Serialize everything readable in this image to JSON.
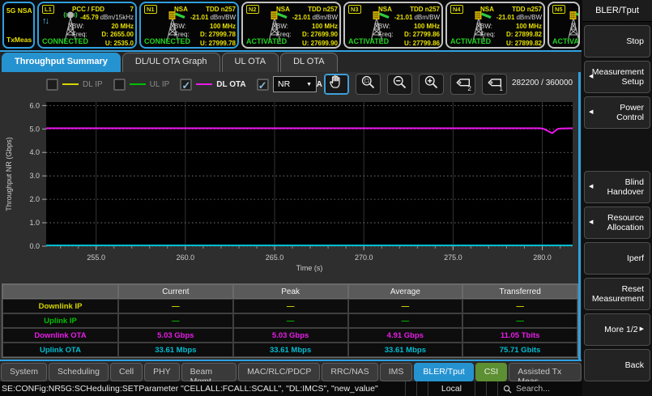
{
  "system_box": {
    "line1": "5G NSA",
    "line2": "TxMeas"
  },
  "cells": [
    {
      "badge": "L1",
      "kind": "lte",
      "selected": true,
      "partial": false,
      "line1_left": "PCC / FDD",
      "line1_right": "7",
      "power": "-45.79",
      "power_unit": "dBm/15kHz",
      "bw_label": "BW:",
      "bw": "20 MHz",
      "freq_label": "Freq:",
      "dl": "D: 2655.00",
      "ul": "U: 2535.0",
      "status": "CONNECTED"
    },
    {
      "badge": "N1",
      "kind": "nr",
      "selected": true,
      "partial": false,
      "line1_left": "NSA",
      "line1_right": "TDD n257",
      "power": "-21.01",
      "power_unit": "dBm/BW",
      "bw_label": "BW:",
      "bw": "100 MHz",
      "freq_label": "Freq:",
      "dl": "D: 27999.78",
      "ul": "U: 27999.78",
      "status": "CONNECTED"
    },
    {
      "badge": "N2",
      "kind": "nr",
      "selected": false,
      "partial": false,
      "line1_left": "NSA",
      "line1_right": "TDD n257",
      "power": "-21.01",
      "power_unit": "dBm/BW",
      "bw_label": "BW:",
      "bw": "100 MHz",
      "freq_label": "Freq:",
      "dl": "D: 27699.90",
      "ul": "U: 27699.90",
      "status": "ACTIVATED"
    },
    {
      "badge": "N3",
      "kind": "nr",
      "selected": false,
      "partial": false,
      "line1_left": "NSA",
      "line1_right": "TDD n257",
      "power": "-21.01",
      "power_unit": "dBm/BW",
      "bw_label": "BW:",
      "bw": "100 MHz",
      "freq_label": "Freq:",
      "dl": "D: 27799.86",
      "ul": "U: 27799.86",
      "status": "ACTIVATED"
    },
    {
      "badge": "N4",
      "kind": "nr",
      "selected": false,
      "partial": false,
      "line1_left": "NSA",
      "line1_right": "TDD n257",
      "power": "-21.01",
      "power_unit": "dBm/BW",
      "bw_label": "BW:",
      "bw": "100 MHz",
      "freq_label": "Freq:",
      "dl": "D: 27899.82",
      "ul": "U: 27899.82",
      "status": "ACTIVATED"
    },
    {
      "badge": "N5",
      "kind": "nr",
      "selected": false,
      "partial": true,
      "status": "ACTIVATED"
    }
  ],
  "tabs": [
    {
      "label": "Throughput Summary",
      "active": true
    },
    {
      "label": "DL/UL OTA Graph",
      "active": false
    },
    {
      "label": "UL OTA",
      "active": false
    },
    {
      "label": "DL OTA",
      "active": false
    }
  ],
  "legend": [
    {
      "label": "DL IP",
      "color": "#d6d600",
      "checked": false
    },
    {
      "label": "UL IP",
      "color": "#00c000",
      "checked": false
    },
    {
      "label": "DL OTA",
      "color": "#e81ce8",
      "checked": true
    },
    {
      "label": "UL OTA",
      "color": "#00bcd0",
      "checked": true
    }
  ],
  "toolbar": {
    "technology_dropdown": "NR",
    "counter": "282200 / 360000",
    "buttons": [
      {
        "name": "pan-tool",
        "active": true
      },
      {
        "name": "zoom-box",
        "active": false
      },
      {
        "name": "zoom-out",
        "active": false
      },
      {
        "name": "zoom-in",
        "active": false
      },
      {
        "name": "marker-2",
        "active": false
      },
      {
        "name": "marker-1",
        "active": false
      }
    ]
  },
  "chart_data": {
    "type": "line",
    "title": "",
    "xlabel": "Time (s)",
    "ylabel": "Throughput NR (Gbps)",
    "xlim": [
      252.2,
      281.7
    ],
    "ylim": [
      0,
      6.15
    ],
    "xticks": [
      255,
      260,
      265,
      270,
      275,
      280
    ],
    "yticks": [
      0,
      1,
      2,
      3,
      4,
      5,
      6
    ],
    "grid": true,
    "legend_position": "top",
    "series": [
      {
        "name": "DL OTA",
        "color": "#ee16ee",
        "points": [
          [
            252.2,
            5.03
          ],
          [
            279.9,
            5.03
          ],
          [
            280.1,
            5.0
          ],
          [
            280.55,
            4.82
          ],
          [
            280.85,
            5.0
          ],
          [
            281.0,
            5.02
          ],
          [
            281.7,
            5.03
          ]
        ]
      },
      {
        "name": "UL OTA",
        "color": "#00bcd0",
        "points": [
          [
            252.2,
            0.034
          ],
          [
            281.7,
            0.034
          ]
        ]
      }
    ]
  },
  "table": {
    "headers": [
      "",
      "Current",
      "Peak",
      "Average",
      "Transferred"
    ],
    "rows": [
      {
        "label": "Downlink IP",
        "color": "#d6d600",
        "values": [
          "—",
          "—",
          "—",
          "—"
        ]
      },
      {
        "label": "Uplink IP",
        "color": "#00c000",
        "values": [
          "—",
          "—",
          "—",
          "—"
        ]
      },
      {
        "label": "Downlink OTA",
        "color": "#e81ce8",
        "values": [
          "5.03 Gbps",
          "5.03 Gbps",
          "4.91 Gbps",
          "11.05 Tbits"
        ]
      },
      {
        "label": "Uplink OTA",
        "color": "#00bcd0",
        "values": [
          "33.61 Mbps",
          "33.61 Mbps",
          "33.61 Mbps",
          "75.71 Gbits"
        ]
      }
    ]
  },
  "bottom_tabs": [
    {
      "label": "System",
      "state": "normal"
    },
    {
      "label": "Scheduling",
      "state": "normal"
    },
    {
      "label": "Cell",
      "state": "normal"
    },
    {
      "label": "PHY",
      "state": "normal"
    },
    {
      "label": "Beam Mgmt",
      "state": "normal"
    },
    {
      "label": "MAC/RLC/PDCP",
      "state": "normal"
    },
    {
      "label": "RRC/NAS",
      "state": "normal"
    },
    {
      "label": "IMS",
      "state": "normal"
    },
    {
      "label": "BLER/Tput",
      "state": "active"
    },
    {
      "label": "CSI",
      "state": "highlight"
    },
    {
      "label": "Assisted Tx Meas",
      "state": "normal"
    }
  ],
  "status_bar": {
    "command": "SE:CONFig:NR5G:SCHeduling:SETParameter \"CELLALL:FCALL:SCALL\", \"DL:IMCS\",  \"new_value\"",
    "mode": "Local",
    "search_placeholder": "Search..."
  },
  "sidebar": {
    "title": "BLER/Tput",
    "buttons": [
      {
        "label": "Stop",
        "arrow": "none",
        "gap_before": false
      },
      {
        "label": "Measurement Setup",
        "arrow": "left",
        "gap_before": false
      },
      {
        "label": "Power Control",
        "arrow": "left",
        "gap_before": false
      },
      {
        "label": "Blind Handover",
        "arrow": "left",
        "gap_before": true
      },
      {
        "label": "Resource Allocation",
        "arrow": "left",
        "gap_before": false
      },
      {
        "label": "Iperf",
        "arrow": "none",
        "gap_before": false
      },
      {
        "label": "Reset Measurement",
        "arrow": "none",
        "gap_before": false
      },
      {
        "label": "More 1/2",
        "arrow": "right",
        "gap_before": false
      },
      {
        "label": "Back",
        "arrow": "none",
        "gap_before": false
      }
    ]
  }
}
